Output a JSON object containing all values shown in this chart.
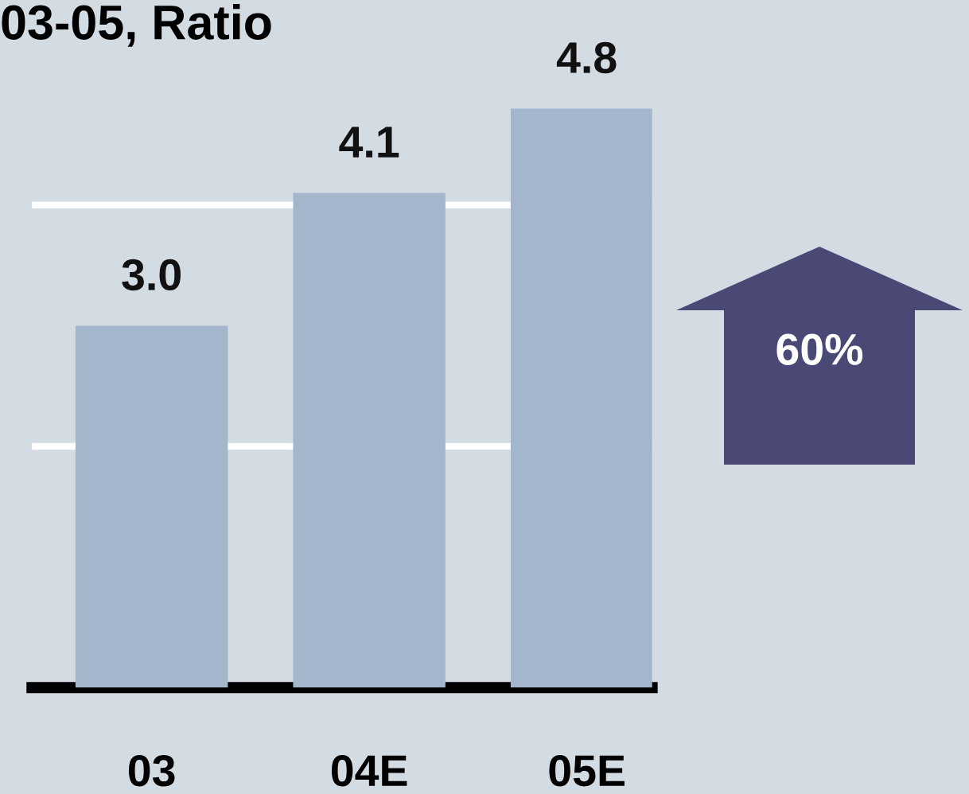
{
  "chart_data": {
    "type": "bar",
    "title": "03-05, Ratio",
    "categories": [
      "03",
      "04E",
      "05E"
    ],
    "values": [
      3.0,
      4.1,
      4.8
    ],
    "value_labels": [
      "3.0",
      "4.1",
      "4.8"
    ],
    "color": "#a3b6cb",
    "ylim": [
      0,
      5.7
    ],
    "tick_labels": "x",
    "ref_lines": [
      {
        "axis": "y",
        "value": 2,
        "color": "#ffffff"
      },
      {
        "axis": "y",
        "value": 4,
        "color": "#ffffff"
      }
    ],
    "annotations": [
      "60%"
    ]
  }
}
